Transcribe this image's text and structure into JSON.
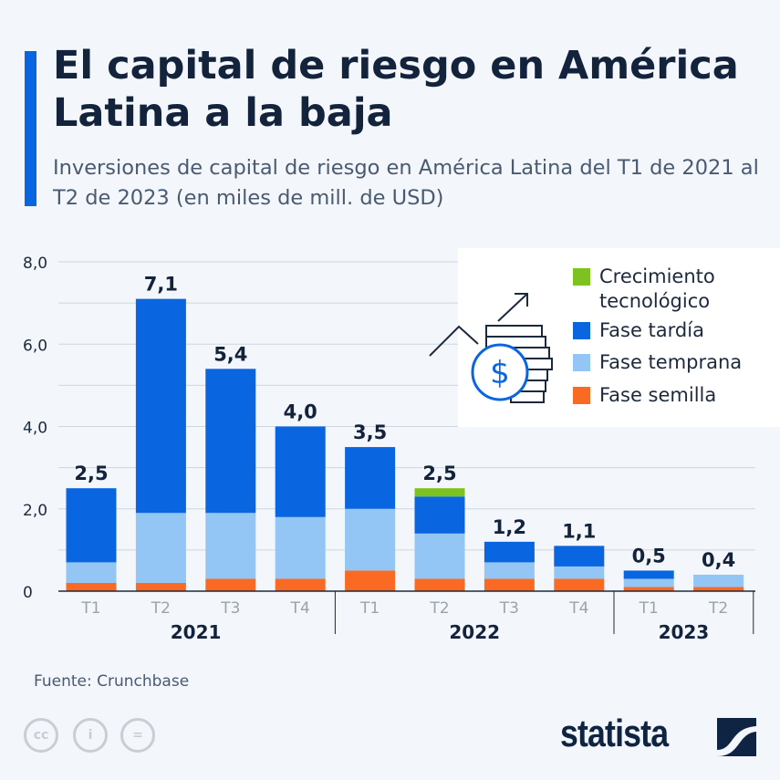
{
  "title": "El capital de riesgo en América Latina a la baja",
  "subtitle": "Inversiones de capital de riesgo en América Latina del T1 de 2021 al T2 de 2023 (en miles de mill. de USD)",
  "source": "Fuente: Crunchbase",
  "brand": "statista",
  "chart_data": {
    "type": "bar",
    "stacked": true,
    "categories": [
      "T1",
      "T2",
      "T3",
      "T4",
      "T1",
      "T2",
      "T3",
      "T4",
      "T1",
      "T2"
    ],
    "groups": [
      {
        "label": "2021",
        "count": 4
      },
      {
        "label": "2022",
        "count": 4
      },
      {
        "label": "2023",
        "count": 2
      }
    ],
    "series": [
      {
        "name": "Fase semilla",
        "color": "#fa6a23",
        "values": [
          0.2,
          0.2,
          0.3,
          0.3,
          0.5,
          0.3,
          0.3,
          0.3,
          0.1,
          0.1
        ]
      },
      {
        "name": "Fase temprana",
        "color": "#94c6f5",
        "values": [
          0.5,
          1.7,
          1.6,
          1.5,
          1.5,
          1.1,
          0.4,
          0.3,
          0.2,
          0.3
        ]
      },
      {
        "name": "Fase tardía",
        "color": "#0a66e0",
        "values": [
          1.8,
          5.2,
          3.5,
          2.2,
          1.5,
          0.9,
          0.5,
          0.5,
          0.2,
          0.0
        ]
      },
      {
        "name": "Crecimiento tecnológico",
        "color": "#7cc31f",
        "values": [
          0,
          0,
          0,
          0,
          0,
          0.2,
          0,
          0,
          0,
          0
        ]
      }
    ],
    "totals": [
      "2,5",
      "7,1",
      "5,4",
      "4,0",
      "3,5",
      "2,5",
      "1,2",
      "1,1",
      "0,5",
      "0,4"
    ],
    "yticks": [
      "0",
      "2,0",
      "4,0",
      "6,0",
      "8,0"
    ],
    "ylim": [
      0,
      8
    ],
    "grid": true,
    "legend": {
      "placement": "top-right",
      "order": [
        "Crecimiento tecnológico",
        "Fase tardía",
        "Fase temprana",
        "Fase semilla"
      ],
      "labels": [
        "Crecimiento\ntecnológico",
        "Fase tardía",
        "Fase temprana",
        "Fase semilla"
      ],
      "icon": "coins-dollar-growth-icon"
    }
  }
}
